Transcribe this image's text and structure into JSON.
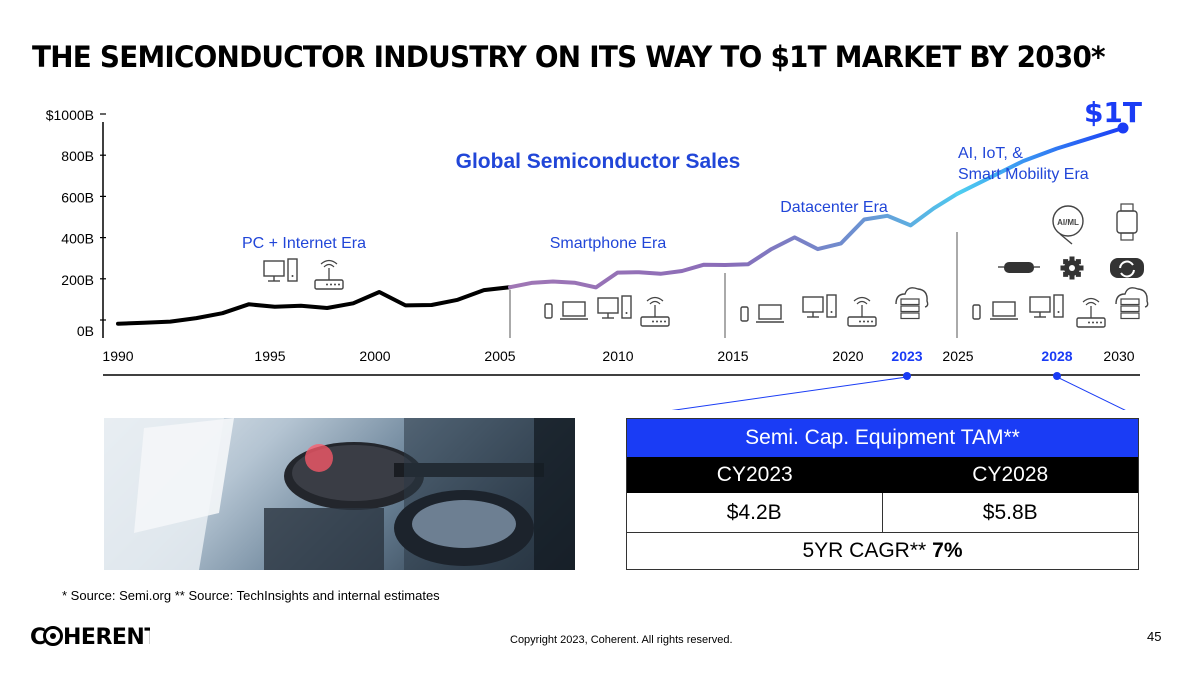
{
  "slide": {
    "title": "THE SEMICONDUCTOR INDUSTRY ON ITS WAY TO $1T MARKET BY 2030*",
    "footnote": "* Source: Semi.org   ** Source: TechInsights and internal estimates",
    "brand": "COHERENT",
    "copyright": "Copyright 2023, Coherent. All rights reserved.",
    "page_number": "45"
  },
  "chart_data": {
    "type": "line",
    "title": "Global Semiconductor Sales",
    "y_tick_labels": [
      "0B",
      "200B",
      "400B",
      "600B",
      "800B",
      "$1000B"
    ],
    "y_ticks": [
      0,
      200,
      400,
      600,
      800,
      1000
    ],
    "ylim": [
      0,
      1000
    ],
    "x_tick_labels": [
      "1990",
      "1995",
      "2000",
      "2005",
      "2010",
      "2015",
      "2020",
      "2023",
      "2025",
      "2028",
      "2030"
    ],
    "x_ticks": [
      1990,
      1995,
      2000,
      2005,
      2010,
      2015,
      2020,
      2023,
      2025,
      2028,
      2030
    ],
    "xlim": [
      1990,
      2030
    ],
    "highlighted_years": [
      2023,
      2028
    ],
    "end_label": "$1T",
    "series": [
      {
        "x": [
          1990,
          1991,
          1992,
          1993,
          1994,
          1995,
          1996,
          1997,
          1998,
          1999,
          2000,
          2001,
          2002,
          2003,
          2004,
          2005,
          2006,
          2007,
          2008,
          2009,
          2010,
          2011,
          2012,
          2013,
          2014,
          2015,
          2016,
          2017,
          2018,
          2019,
          2020,
          2021,
          2022,
          2023,
          2024,
          2025,
          2026,
          2027,
          2028,
          2029,
          2030
        ],
        "y": [
          50,
          55,
          60,
          77,
          101,
          144,
          132,
          137,
          126,
          149,
          204,
          139,
          141,
          166,
          213,
          227,
          248,
          255,
          249,
          226,
          298,
          300,
          292,
          306,
          336,
          335,
          339,
          412,
          469,
          412,
          440,
          556,
          574,
          527,
          610,
          680,
          760,
          840,
          900,
          950,
          1000
        ],
        "eras": [
          {
            "label": "PC + Internet Era",
            "from": 1990,
            "to": 2005,
            "color": "#000000"
          },
          {
            "label": "Smartphone Era",
            "from": 2005,
            "to": 2015,
            "color": "#8e6bb8"
          },
          {
            "label": "Datacenter Era",
            "from": 2015,
            "to": 2025,
            "color": "#5b9ed8"
          },
          {
            "label": "AI, IoT, & Smart Mobility Era",
            "from": 2025,
            "to": 2030,
            "color": "#2d6be3"
          }
        ]
      }
    ],
    "era_dividers": [
      2005,
      2015,
      2025
    ],
    "colors": {
      "accent": "#1a3cf5",
      "era_text": "#2146d8",
      "axis": "#000000"
    }
  },
  "icons": {
    "pc_internet": [
      "desktop-computer-icon",
      "wifi-router-icon"
    ],
    "smartphone": [
      "smartphone-icon",
      "laptop-icon",
      "desktop-computer-icon",
      "wifi-router-icon"
    ],
    "datacenter": [
      "smartphone-icon",
      "laptop-icon",
      "desktop-computer-icon",
      "wifi-router-icon",
      "cloud-server-icon"
    ],
    "ai_iot": [
      "ai-ml-head-icon",
      "smartwatch-icon",
      "vr-headset-icon",
      "gear-icon",
      "sync-badge-icon",
      "smartphone-icon",
      "laptop-icon",
      "desktop-computer-icon",
      "wifi-router-icon",
      "cloud-server-icon"
    ]
  },
  "tam_table": {
    "header": "Semi. Cap. Equipment TAM**",
    "years": [
      "CY2023",
      "CY2028"
    ],
    "values": [
      "$4.2B",
      "$5.8B"
    ],
    "cagr_label": "5YR CAGR**",
    "cagr_value": "7%"
  },
  "photo": {
    "subject": "semiconductor-wafer-handling-robot-photo"
  }
}
